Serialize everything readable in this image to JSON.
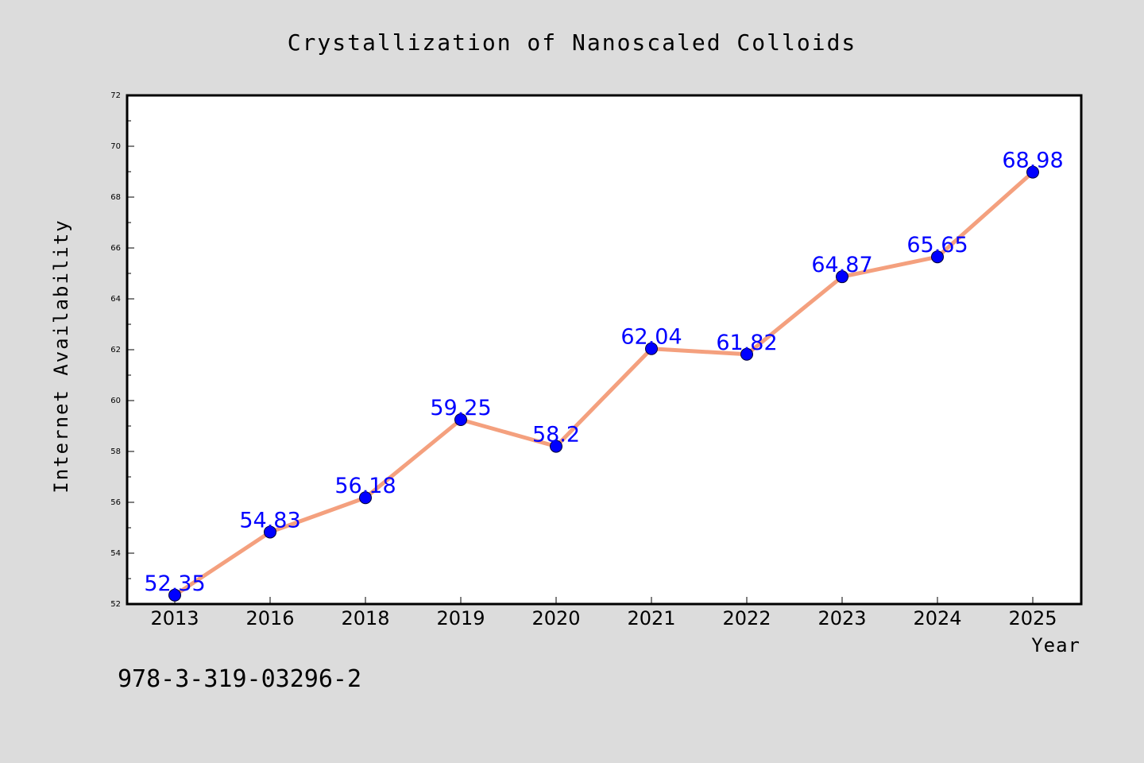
{
  "chart_data": {
    "type": "line",
    "title": "Crystallization of Nanoscaled Colloids",
    "xlabel": "Year",
    "ylabel": "Internet Availability",
    "categories": [
      "2013",
      "2016",
      "2018",
      "2019",
      "2020",
      "2021",
      "2022",
      "2023",
      "2024",
      "2025"
    ],
    "values": [
      52.35,
      54.83,
      56.18,
      59.25,
      58.2,
      62.04,
      61.82,
      64.87,
      65.65,
      68.98
    ],
    "data_labels": [
      "52.35",
      "54.83",
      "56.18",
      "59.25",
      "58.2",
      "62.04",
      "61.82",
      "64.87",
      "65.65",
      "68.98"
    ],
    "ylim": [
      52,
      72
    ],
    "y_ticks": [
      "52",
      "54",
      "56",
      "58",
      "60",
      "62",
      "64",
      "66",
      "68",
      "70",
      "72"
    ],
    "grid": false,
    "legend": "none",
    "colors": {
      "line": "#f4a07e",
      "marker": "#0000ff",
      "data_label": "#0000ff",
      "plot_background": "#ffffff",
      "figure_background": "#dcdcdc"
    }
  },
  "footer_note": "978-3-319-03296-2"
}
